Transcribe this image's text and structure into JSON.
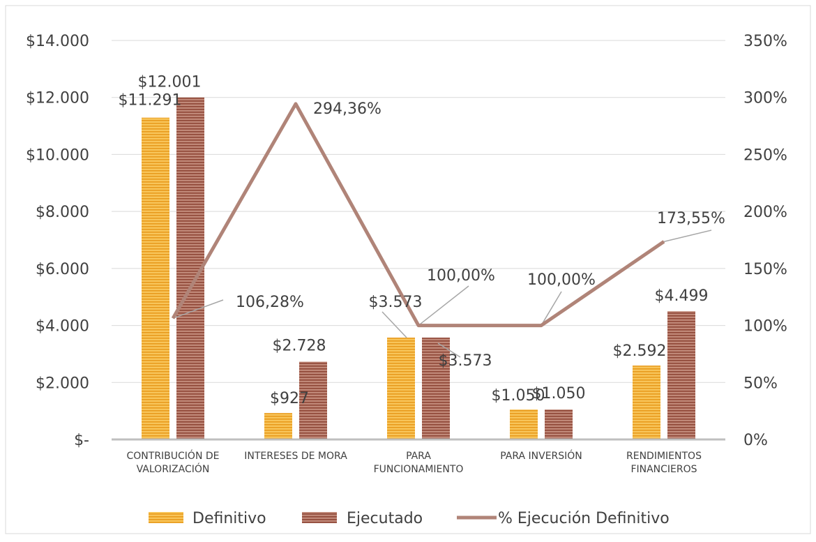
{
  "chart_data": {
    "type": "bar",
    "categories": [
      [
        "CONTRIBUCIÓN DE",
        "VALORIZACIÓN"
      ],
      [
        "INTERESES DE MORA"
      ],
      [
        "PARA",
        "FUNCIONAMIENTO"
      ],
      [
        "PARA INVERSIÓN"
      ],
      [
        "RENDIMIENTOS",
        "FINANCIEROS"
      ]
    ],
    "series": [
      {
        "name": "Definitivo",
        "axis": "left",
        "kind": "bar",
        "values": [
          11291,
          927,
          3573,
          1050,
          2592
        ],
        "labels": [
          "$11.291",
          "$927",
          "$3.573",
          "$1.050",
          "$2.592"
        ],
        "color": "#F5B335"
      },
      {
        "name": "Ejecutado",
        "axis": "left",
        "kind": "bar",
        "values": [
          12001,
          2728,
          3573,
          1050,
          4499
        ],
        "labels": [
          "$12.001",
          "$2.728",
          "$3.573",
          "$1.050",
          "$4.499"
        ],
        "color": "#A45A48"
      },
      {
        "name": "% Ejecución Definitivo",
        "axis": "right",
        "kind": "line",
        "values": [
          106.28,
          294.36,
          100.0,
          100.0,
          173.55
        ],
        "labels": [
          "106,28%",
          "294,36%",
          "100,00%",
          "100,00%",
          "173,55%"
        ],
        "color": "#B08478"
      }
    ],
    "ylim_left": [
      0,
      14000
    ],
    "ylim_right": [
      0,
      350
    ],
    "yticks_left": [
      "$-",
      "$2.000",
      "$4.000",
      "$6.000",
      "$8.000",
      "$10.000",
      "$12.000",
      "$14.000"
    ],
    "yticks_right": [
      "0%",
      "50%",
      "100%",
      "150%",
      "200%",
      "250%",
      "300%",
      "350%"
    ],
    "grid": true,
    "legend_position": "bottom"
  }
}
